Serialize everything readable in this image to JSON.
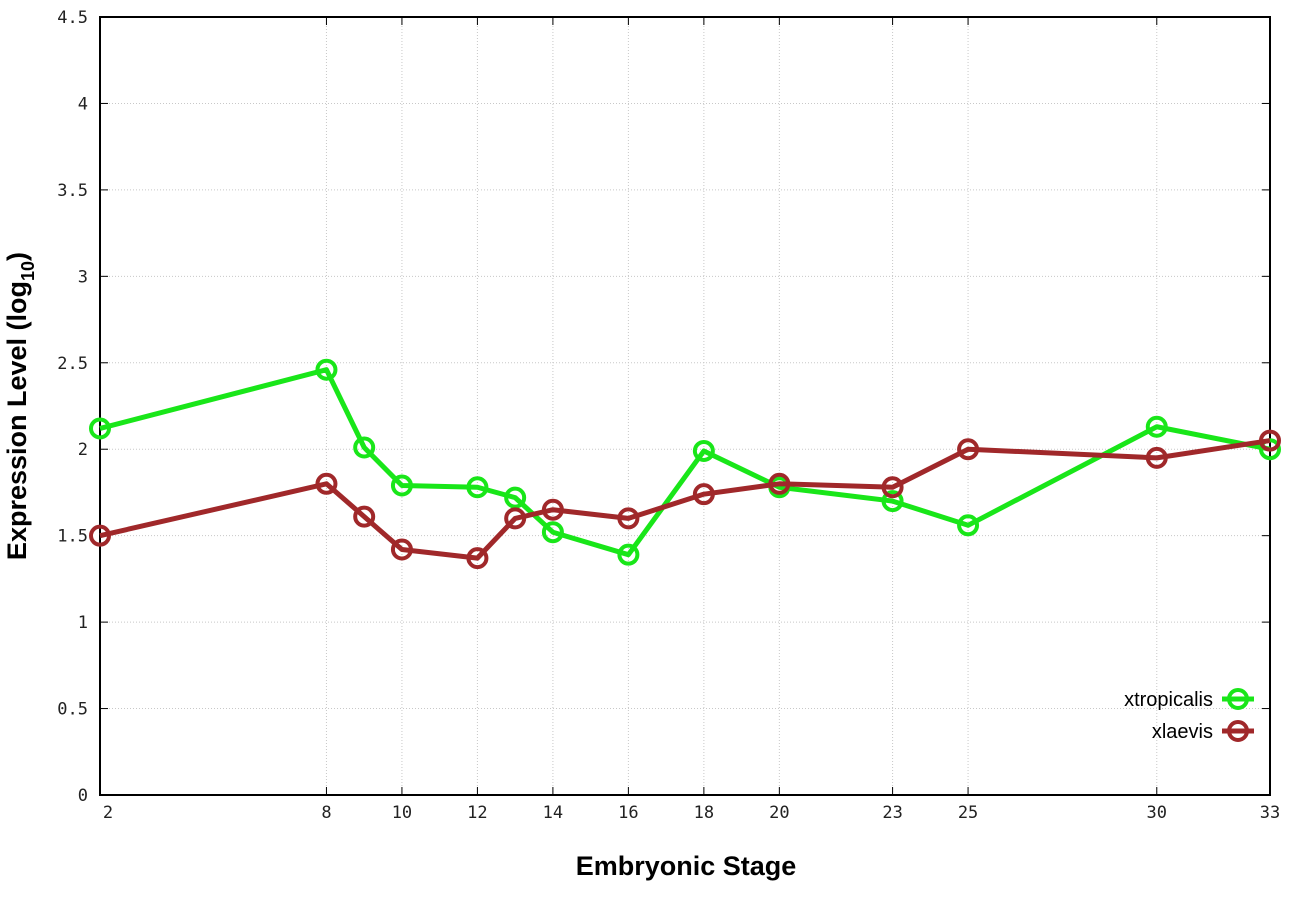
{
  "chart_data": {
    "type": "line",
    "title": "",
    "xlabel": "Embryonic Stage",
    "ylabel": "Expression Level (log",
    "ylabel_sub": "10",
    "ylabel_end": ")",
    "xlim": [
      2,
      33
    ],
    "ylim": [
      0,
      4.5
    ],
    "grid": true,
    "legend_position": "bottom-right",
    "x": [
      2,
      8,
      9,
      10,
      12,
      13,
      14,
      16,
      18,
      20,
      23,
      25,
      30,
      33
    ],
    "xticks": [
      2,
      8,
      10,
      12,
      14,
      16,
      18,
      20,
      23,
      25,
      30,
      33
    ],
    "xtick_labels": [
      "2",
      "8",
      "10",
      "12",
      "14",
      "16",
      "18",
      "20",
      "23",
      "25",
      "30",
      "33"
    ],
    "yticks": [
      0,
      0.5,
      1,
      1.5,
      2,
      2.5,
      3,
      3.5,
      4,
      4.5
    ],
    "ytick_labels": [
      "0",
      "0.5",
      "1",
      "1.5",
      "2",
      "2.5",
      "3",
      "3.5",
      "4",
      "4.5"
    ],
    "series": [
      {
        "name": "xtropicalis",
        "color": "#19e619",
        "values": [
          2.12,
          2.46,
          2.01,
          1.79,
          1.78,
          1.72,
          1.52,
          1.39,
          1.99,
          1.78,
          1.7,
          1.56,
          2.13,
          2.0
        ]
      },
      {
        "name": "xlaevis",
        "color": "#a0282a",
        "values": [
          1.5,
          1.8,
          1.61,
          1.42,
          1.37,
          1.6,
          1.65,
          1.6,
          1.74,
          1.8,
          1.78,
          2.0,
          1.95,
          2.05
        ]
      }
    ]
  }
}
